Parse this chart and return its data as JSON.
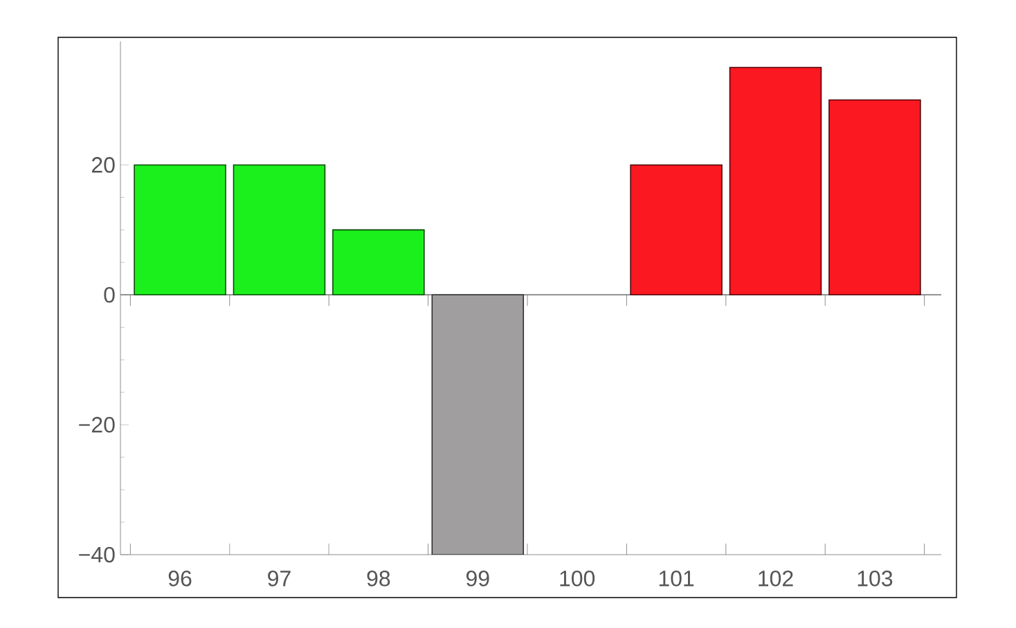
{
  "chart_data": {
    "type": "bar",
    "categories": [
      "96",
      "97",
      "98",
      "99",
      "100",
      "101",
      "102",
      "103"
    ],
    "values": [
      20,
      20,
      10,
      -40,
      null,
      20,
      35,
      30
    ],
    "colors": [
      "#1cf01c",
      "#1cf01c",
      "#1cf01c",
      "#a09e9e",
      "#ffffff",
      "#fc1820",
      "#fc1820",
      "#fc1820"
    ],
    "ylim": [
      -40,
      39
    ],
    "yticks": [
      {
        "value": -40,
        "label": "−40"
      },
      {
        "value": -20,
        "label": "−20"
      },
      0,
      20
    ],
    "ref_lines": [
      {
        "axis": "y",
        "value": 0,
        "color": "#707070"
      }
    ],
    "grid": false
  }
}
